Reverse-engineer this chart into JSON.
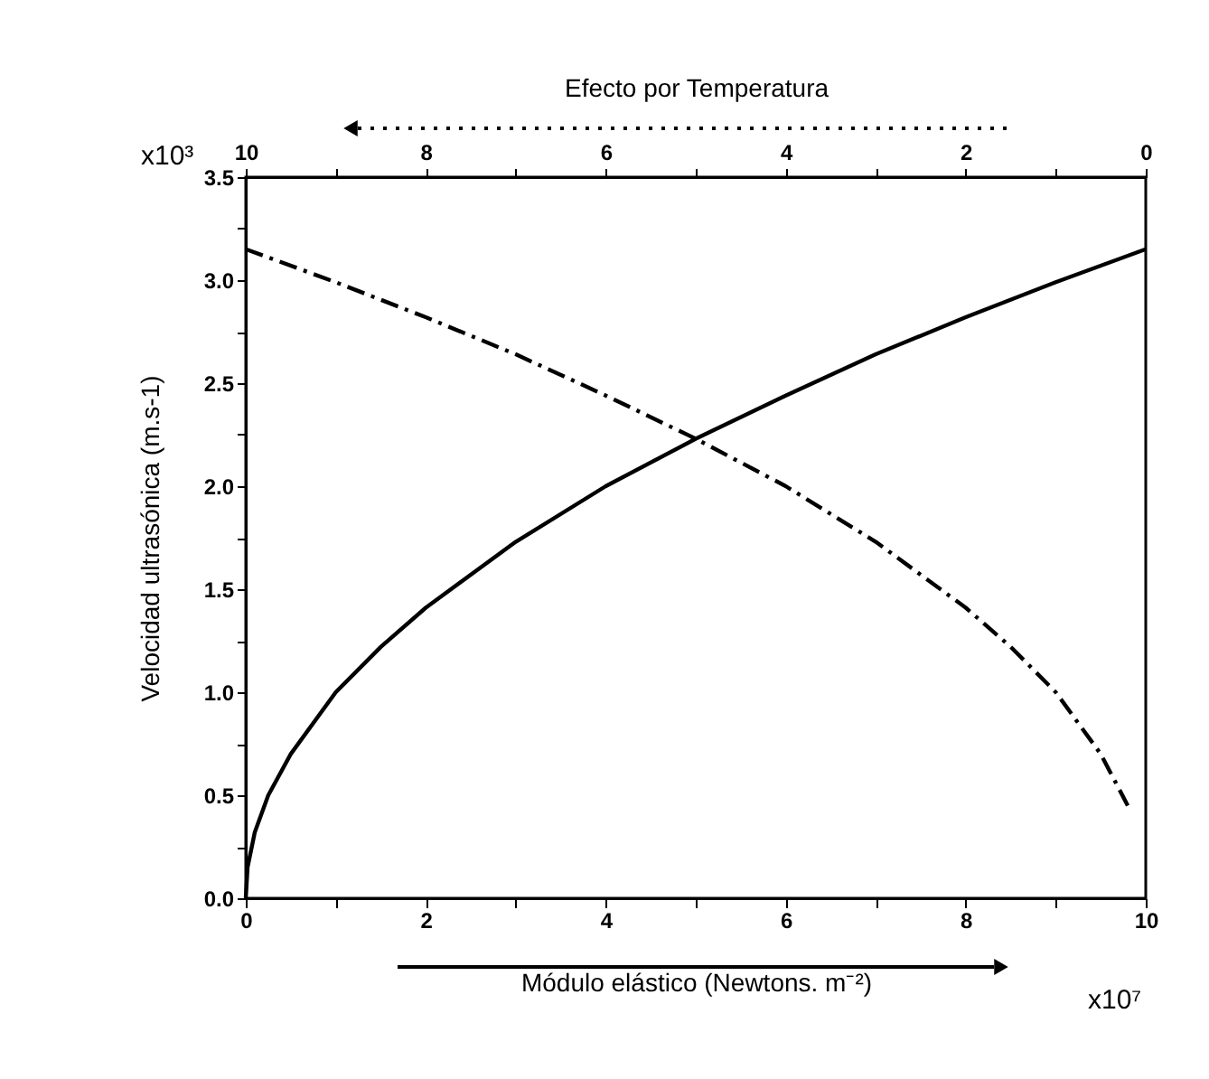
{
  "chart_data": {
    "type": "line",
    "xlabel": "Módulo elástico (Newtons. m⁻²)",
    "ylabel": "Velocidad ultrasónica (m.s-1)",
    "x2label": "Efecto por Temperatura",
    "annotations": [
      "x10³",
      "x10⁷"
    ],
    "xlim": [
      0,
      10
    ],
    "xticks": [
      0,
      {
        "value": 1,
        "label": null
      },
      2,
      {
        "value": 3,
        "label": null
      },
      4,
      {
        "value": 5,
        "label": null
      },
      6,
      {
        "value": 7,
        "label": null
      },
      8,
      {
        "value": 9,
        "label": null
      },
      10
    ],
    "x2lim": [
      10,
      0
    ],
    "x2ticks": [
      10,
      {
        "value": 9,
        "label": null
      },
      8,
      {
        "value": 7,
        "label": null
      },
      6,
      {
        "value": 5,
        "label": null
      },
      4,
      {
        "value": 3,
        "label": null
      },
      2,
      {
        "value": 1,
        "label": null
      },
      0
    ],
    "ylim": [
      0,
      3.5
    ],
    "yticks": [
      {
        "value": 0,
        "label": "0.0"
      },
      {
        "value": 0.25,
        "label": null
      },
      {
        "value": 0.5,
        "label": "0.5"
      },
      {
        "value": 0.75,
        "label": null
      },
      {
        "value": 1,
        "label": "1.0"
      },
      {
        "value": 1.25,
        "label": null
      },
      {
        "value": 1.5,
        "label": "1.5"
      },
      {
        "value": 1.75,
        "label": null
      },
      {
        "value": 2,
        "label": "2.0"
      },
      {
        "value": 2.25,
        "label": null
      },
      {
        "value": 2.5,
        "label": "2.5"
      },
      {
        "value": 2.75,
        "label": null
      },
      {
        "value": 3,
        "label": "3.0"
      },
      {
        "value": 3.25,
        "label": null
      },
      {
        "value": 3.5,
        "label": "3.5"
      }
    ],
    "grid": false,
    "marker": "none",
    "series": [
      {
        "color": "#000000",
        "line_style": "solid",
        "x": [
          0,
          0.02,
          0.1,
          0.25,
          0.5,
          1,
          1.5,
          2,
          3,
          4,
          5,
          6,
          7,
          8,
          9,
          10
        ],
        "values": [
          0,
          0.15,
          0.32,
          0.5,
          0.7,
          1.0,
          1.22,
          1.41,
          1.73,
          2.0,
          2.23,
          2.44,
          2.64,
          2.82,
          2.99,
          3.15
        ]
      },
      {
        "color": "#000000",
        "line_style": "dashdot",
        "axis": "x2",
        "x": [
          10,
          9,
          8,
          7,
          6,
          5,
          4,
          3,
          2,
          1.5,
          1,
          0.5,
          0.2
        ],
        "values": [
          3.15,
          2.99,
          2.82,
          2.64,
          2.44,
          2.23,
          2.0,
          1.73,
          1.41,
          1.22,
          1.0,
          0.7,
          0.45
        ]
      }
    ]
  }
}
